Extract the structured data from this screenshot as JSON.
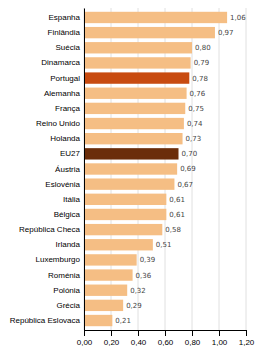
{
  "chart_data": {
    "type": "bar",
    "orientation": "horizontal",
    "categories": [
      "República Eslovaca",
      "Grécia",
      "Polónia",
      "Roménia",
      "Luxemburgo",
      "Irlanda",
      "República Checa",
      "Bélgica",
      "Itália",
      "Eslovénia",
      "Áustria",
      "EU27",
      "Holanda",
      "Reino Unido",
      "França",
      "Alemanha",
      "Portugal",
      "Dinamarca",
      "Suécia",
      "Finlândia",
      "Espanha"
    ],
    "values": [
      0.21,
      0.29,
      0.32,
      0.36,
      0.39,
      0.51,
      0.58,
      0.61,
      0.61,
      0.67,
      0.69,
      0.7,
      0.73,
      0.74,
      0.75,
      0.76,
      0.78,
      0.79,
      0.8,
      0.97,
      1.06
    ],
    "value_labels": [
      "0,21",
      "0,29",
      "0,32",
      "0,36",
      "0,39",
      "0,51",
      "0,58",
      "0,61",
      "0,61",
      "0,67",
      "0,69",
      "0,70",
      "0,73",
      "0,74",
      "0,75",
      "0,76",
      "0,78",
      "0,79",
      "0,80",
      "0,97",
      "1,06"
    ],
    "data_labels": true,
    "colors": [
      "#f5be84",
      "#f5be84",
      "#f5be84",
      "#f5be84",
      "#f5be84",
      "#f5be84",
      "#f5be84",
      "#f5be84",
      "#f5be84",
      "#f5be84",
      "#f5be84",
      "#6b2d0a",
      "#f5be84",
      "#f5be84",
      "#f5be84",
      "#f5be84",
      "#c84b10",
      "#f5be84",
      "#f5be84",
      "#f5be84",
      "#f5be84"
    ],
    "xlim": [
      0,
      1.2
    ],
    "xticks": [
      {
        "value": 0.0,
        "label": "0,00"
      },
      {
        "value": 0.2,
        "label": "0,20"
      },
      {
        "value": 0.4,
        "label": "0,40"
      },
      {
        "value": 0.6,
        "label": "0,60"
      },
      {
        "value": 0.8,
        "label": "0,80"
      },
      {
        "value": 1.0,
        "label": "1,00"
      },
      {
        "value": 1.2,
        "label": "1,20"
      }
    ],
    "grid": true
  }
}
